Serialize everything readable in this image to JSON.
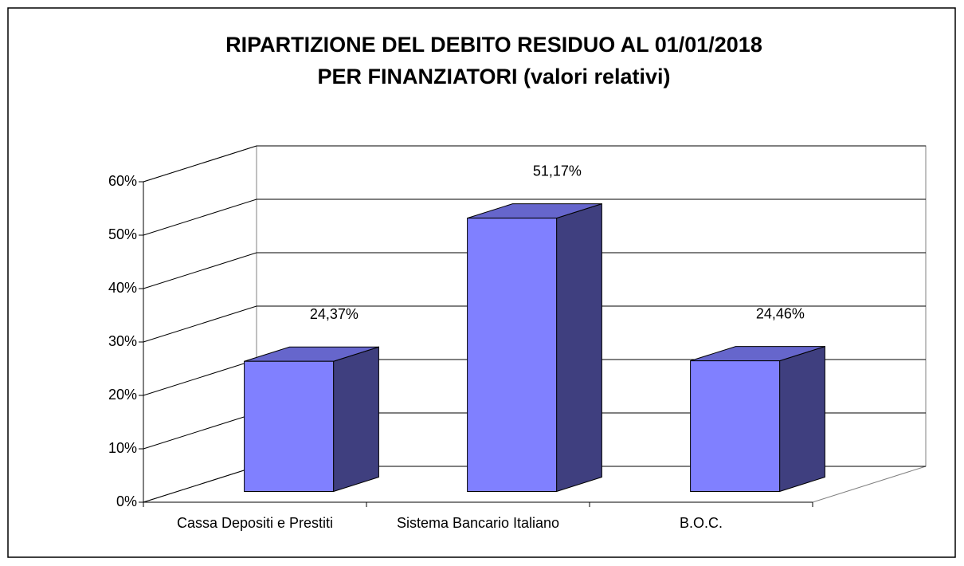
{
  "chart_data": {
    "type": "bar3d",
    "title": [
      "RIPARTIZIONE DEL DEBITO RESIDUO AL 01/01/2018",
      "PER FINANZIATORI (valori relativi)"
    ],
    "categories": [
      "Cassa Depositi e Prestiti",
      "Sistema Bancario Italiano",
      "B.O.C."
    ],
    "values": [
      24.37,
      51.17,
      24.46
    ],
    "value_labels": [
      "24,37%",
      "51,17%",
      "24,46%"
    ],
    "color": "#8080ff",
    "ylim": [
      0,
      60
    ],
    "yticks": [
      {
        "value": 0,
        "label": "0%"
      },
      {
        "value": 10,
        "label": "10%"
      },
      {
        "value": 20,
        "label": "20%"
      },
      {
        "value": 30,
        "label": "30%"
      },
      {
        "value": 40,
        "label": "40%"
      },
      {
        "value": 50,
        "label": "50%"
      },
      {
        "value": 60,
        "label": "60%"
      }
    ],
    "grid": true
  }
}
